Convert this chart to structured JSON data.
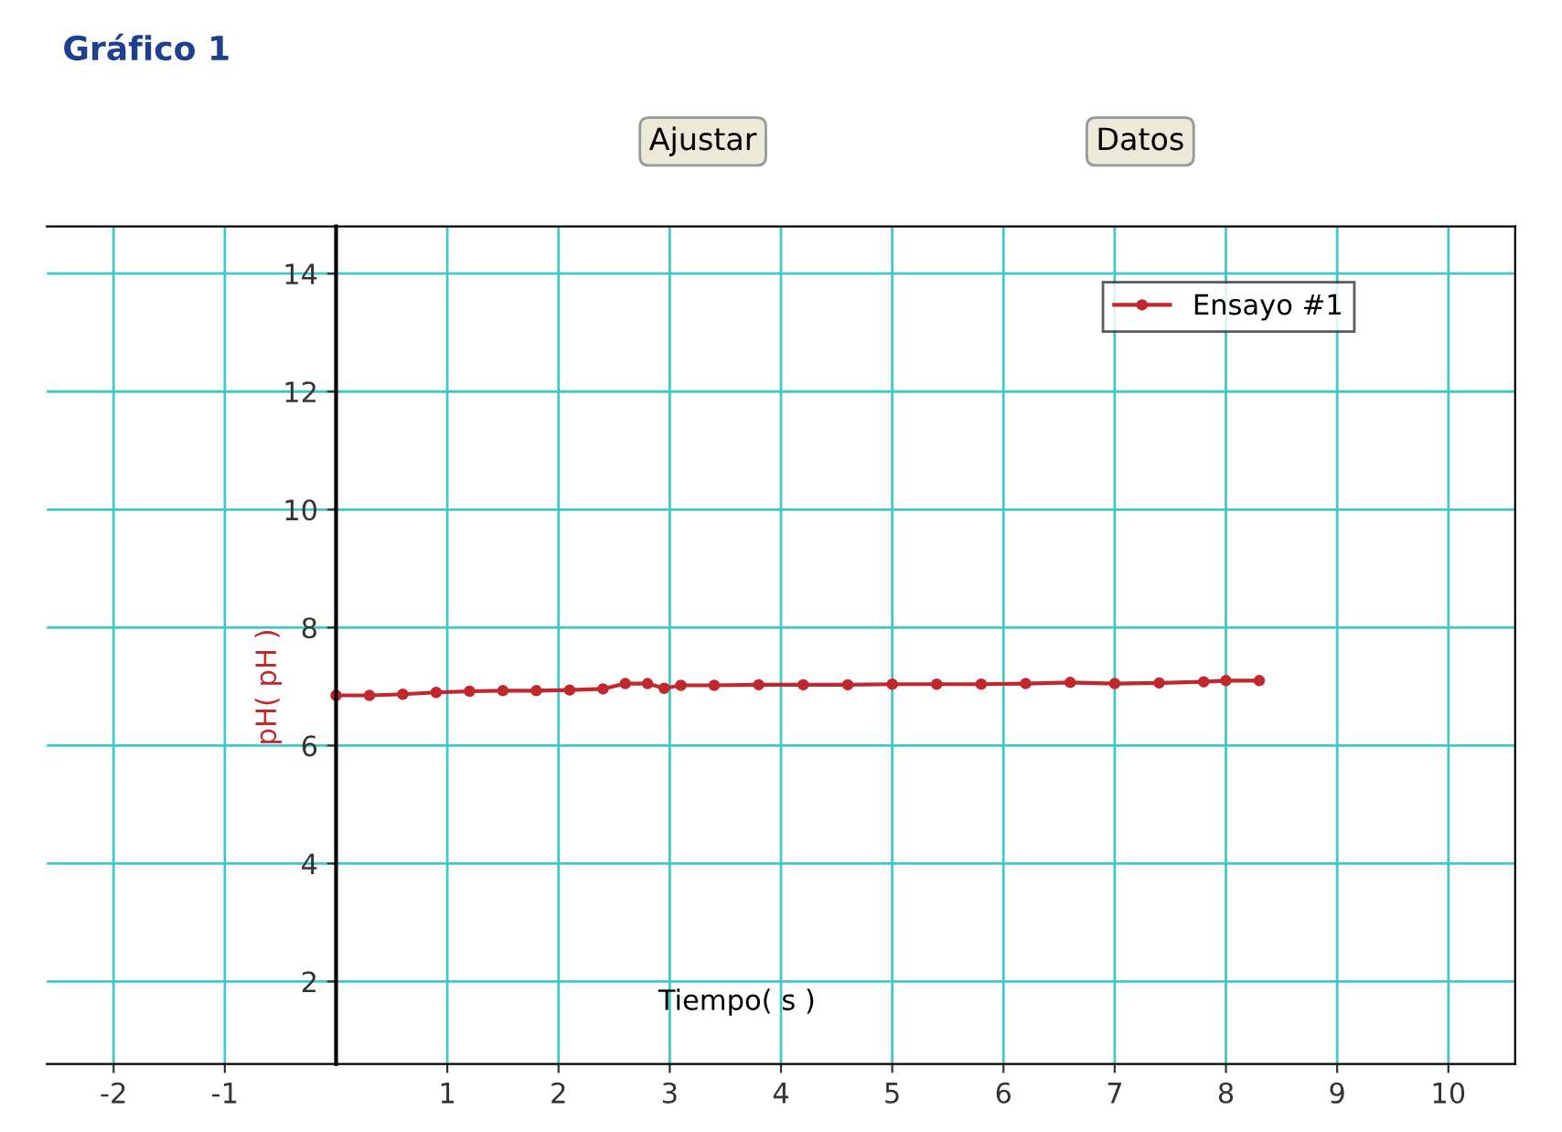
{
  "chart_data": {
    "type": "line",
    "title": "Gráfico 1",
    "annotations": [
      "Ajustar",
      "Datos"
    ],
    "xlabel": "Tiempo( s )",
    "ylabel": "pH( pH )",
    "xlim": [
      -2.6,
      10.6
    ],
    "ylim": [
      0.6,
      14.8
    ],
    "xticks": [
      -2,
      -1,
      1,
      2,
      3,
      4,
      5,
      6,
      7,
      8,
      9,
      10
    ],
    "yticks": [
      2,
      4,
      6,
      8,
      10,
      12,
      14
    ],
    "grid": true,
    "legend": "top right",
    "marker": "circle",
    "line_style": "solid",
    "series": [
      {
        "name": "Ensayo #1",
        "color": "#c0282d",
        "x": [
          0,
          0.3,
          0.6,
          0.9,
          1.2,
          1.5,
          1.8,
          2.1,
          2.4,
          2.6,
          2.8,
          2.95,
          3.1,
          3.4,
          3.8,
          4.2,
          4.6,
          5.0,
          5.4,
          5.8,
          6.2,
          6.6,
          7.0,
          7.4,
          7.8,
          8.0,
          8.3
        ],
        "values": [
          6.85,
          6.85,
          6.87,
          6.9,
          6.92,
          6.93,
          6.93,
          6.94,
          6.96,
          7.05,
          7.05,
          6.97,
          7.02,
          7.02,
          7.03,
          7.03,
          7.03,
          7.04,
          7.04,
          7.04,
          7.05,
          7.07,
          7.05,
          7.06,
          7.08,
          7.1,
          7.1
        ]
      }
    ]
  }
}
